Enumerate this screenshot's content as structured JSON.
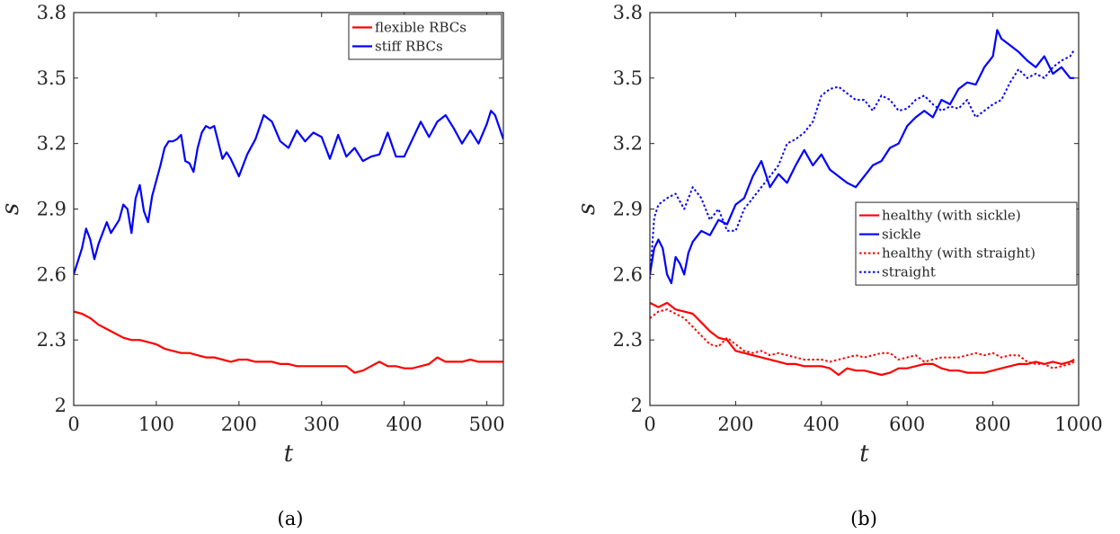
{
  "chart_data": [
    {
      "type": "line",
      "caption": "(a)",
      "xlabel": "t",
      "ylabel": "s",
      "xlim": [
        0,
        520
      ],
      "ylim": [
        2,
        3.8
      ],
      "xticks": [
        0,
        100,
        200,
        300,
        400,
        500
      ],
      "yticks": [
        2,
        2.3,
        2.6,
        2.9,
        3.2,
        3.5,
        3.8
      ],
      "ytick_labels": [
        "2",
        "2.3",
        "2.6",
        "2.9",
        "3.2",
        "3.5",
        "3.8"
      ],
      "legend_position": "top-right",
      "series": [
        {
          "name": "flexible RBCs",
          "color": "#ff0000",
          "style": "solid",
          "x": [
            0,
            10,
            20,
            30,
            40,
            50,
            60,
            70,
            80,
            90,
            100,
            110,
            120,
            130,
            140,
            150,
            160,
            170,
            180,
            190,
            200,
            210,
            220,
            230,
            240,
            250,
            260,
            270,
            280,
            290,
            300,
            310,
            320,
            330,
            340,
            350,
            360,
            370,
            380,
            390,
            400,
            410,
            420,
            430,
            440,
            450,
            460,
            470,
            480,
            490,
            500,
            510,
            520
          ],
          "values": [
            2.43,
            2.42,
            2.4,
            2.37,
            2.35,
            2.33,
            2.31,
            2.3,
            2.3,
            2.29,
            2.28,
            2.26,
            2.25,
            2.24,
            2.24,
            2.23,
            2.22,
            2.22,
            2.21,
            2.2,
            2.21,
            2.21,
            2.2,
            2.2,
            2.2,
            2.19,
            2.19,
            2.18,
            2.18,
            2.18,
            2.18,
            2.18,
            2.18,
            2.18,
            2.15,
            2.16,
            2.18,
            2.2,
            2.18,
            2.18,
            2.17,
            2.17,
            2.18,
            2.19,
            2.22,
            2.2,
            2.2,
            2.2,
            2.21,
            2.2,
            2.2,
            2.2,
            2.2
          ]
        },
        {
          "name": "stiff RBCs",
          "color": "#0000ff",
          "style": "solid",
          "x": [
            0,
            10,
            15,
            20,
            25,
            30,
            40,
            45,
            50,
            55,
            60,
            65,
            70,
            75,
            80,
            85,
            90,
            95,
            100,
            105,
            110,
            115,
            120,
            125,
            130,
            135,
            140,
            145,
            150,
            155,
            160,
            165,
            170,
            180,
            185,
            190,
            200,
            210,
            220,
            230,
            240,
            250,
            260,
            270,
            280,
            290,
            300,
            310,
            320,
            330,
            340,
            350,
            360,
            370,
            380,
            390,
            400,
            410,
            420,
            430,
            440,
            450,
            460,
            470,
            480,
            490,
            500,
            505,
            510,
            520
          ],
          "values": [
            2.6,
            2.72,
            2.81,
            2.76,
            2.67,
            2.74,
            2.84,
            2.79,
            2.82,
            2.85,
            2.92,
            2.9,
            2.79,
            2.95,
            3.01,
            2.89,
            2.84,
            2.96,
            3.03,
            3.1,
            3.18,
            3.21,
            3.21,
            3.22,
            3.24,
            3.12,
            3.11,
            3.07,
            3.18,
            3.25,
            3.28,
            3.27,
            3.28,
            3.13,
            3.16,
            3.13,
            3.05,
            3.15,
            3.22,
            3.33,
            3.3,
            3.21,
            3.18,
            3.26,
            3.21,
            3.25,
            3.23,
            3.13,
            3.24,
            3.14,
            3.18,
            3.12,
            3.14,
            3.15,
            3.25,
            3.14,
            3.14,
            3.22,
            3.3,
            3.23,
            3.3,
            3.33,
            3.27,
            3.2,
            3.26,
            3.2,
            3.29,
            3.35,
            3.33,
            3.22
          ]
        }
      ]
    },
    {
      "type": "line",
      "caption": "(b)",
      "xlabel": "t",
      "ylabel": "s",
      "xlim": [
        0,
        1000
      ],
      "ylim": [
        2,
        3.8
      ],
      "xticks": [
        0,
        200,
        400,
        600,
        800,
        1000
      ],
      "yticks": [
        2,
        2.3,
        2.6,
        2.9,
        3.2,
        3.5,
        3.8
      ],
      "ytick_labels": [
        "2",
        "2.3",
        "2.6",
        "2.9",
        "3.2",
        "3.5",
        "3.8"
      ],
      "legend_position": "lower-right",
      "series": [
        {
          "name": "healthy (with sickle)",
          "color": "#ff0000",
          "style": "solid",
          "x": [
            0,
            20,
            40,
            60,
            80,
            100,
            120,
            140,
            160,
            180,
            200,
            220,
            240,
            260,
            280,
            300,
            320,
            340,
            360,
            380,
            400,
            420,
            440,
            460,
            480,
            500,
            520,
            540,
            560,
            580,
            600,
            620,
            640,
            660,
            680,
            700,
            720,
            740,
            760,
            780,
            800,
            820,
            840,
            860,
            880,
            900,
            920,
            940,
            960,
            980,
            990
          ],
          "values": [
            2.47,
            2.45,
            2.47,
            2.44,
            2.43,
            2.42,
            2.38,
            2.34,
            2.31,
            2.3,
            2.25,
            2.24,
            2.23,
            2.22,
            2.21,
            2.2,
            2.19,
            2.19,
            2.18,
            2.18,
            2.18,
            2.17,
            2.14,
            2.17,
            2.16,
            2.16,
            2.15,
            2.14,
            2.15,
            2.17,
            2.17,
            2.18,
            2.19,
            2.19,
            2.17,
            2.16,
            2.16,
            2.15,
            2.15,
            2.15,
            2.16,
            2.17,
            2.18,
            2.19,
            2.19,
            2.2,
            2.19,
            2.2,
            2.19,
            2.2,
            2.21
          ]
        },
        {
          "name": "sickle",
          "color": "#0000ff",
          "style": "solid",
          "x": [
            0,
            10,
            20,
            30,
            40,
            50,
            60,
            70,
            80,
            90,
            100,
            120,
            140,
            160,
            180,
            200,
            220,
            240,
            260,
            280,
            300,
            320,
            340,
            360,
            380,
            400,
            420,
            440,
            460,
            480,
            500,
            520,
            540,
            560,
            580,
            600,
            620,
            640,
            660,
            680,
            700,
            720,
            740,
            760,
            780,
            800,
            810,
            820,
            840,
            860,
            880,
            900,
            920,
            940,
            960,
            980,
            990
          ],
          "values": [
            2.6,
            2.72,
            2.76,
            2.72,
            2.6,
            2.56,
            2.68,
            2.65,
            2.6,
            2.7,
            2.75,
            2.8,
            2.78,
            2.85,
            2.83,
            2.92,
            2.95,
            3.05,
            3.12,
            3.0,
            3.06,
            3.02,
            3.1,
            3.17,
            3.1,
            3.15,
            3.08,
            3.05,
            3.02,
            3.0,
            3.05,
            3.1,
            3.12,
            3.18,
            3.2,
            3.28,
            3.32,
            3.35,
            3.32,
            3.4,
            3.38,
            3.45,
            3.48,
            3.47,
            3.55,
            3.6,
            3.72,
            3.68,
            3.65,
            3.62,
            3.58,
            3.55,
            3.6,
            3.52,
            3.55,
            3.5,
            3.5
          ]
        },
        {
          "name": "healthy (with straight)",
          "color": "#ff0000",
          "style": "dotted",
          "x": [
            0,
            20,
            40,
            60,
            80,
            100,
            120,
            140,
            160,
            180,
            200,
            220,
            240,
            260,
            280,
            300,
            320,
            340,
            360,
            380,
            400,
            420,
            440,
            460,
            480,
            500,
            520,
            540,
            560,
            580,
            600,
            620,
            640,
            660,
            680,
            700,
            720,
            740,
            760,
            780,
            800,
            820,
            840,
            860,
            880,
            900,
            920,
            940,
            960,
            980,
            990
          ],
          "values": [
            2.4,
            2.43,
            2.44,
            2.42,
            2.4,
            2.36,
            2.32,
            2.28,
            2.27,
            2.31,
            2.28,
            2.25,
            2.24,
            2.25,
            2.23,
            2.24,
            2.23,
            2.22,
            2.21,
            2.21,
            2.21,
            2.2,
            2.21,
            2.22,
            2.23,
            2.22,
            2.23,
            2.24,
            2.24,
            2.21,
            2.22,
            2.23,
            2.2,
            2.21,
            2.22,
            2.22,
            2.22,
            2.23,
            2.24,
            2.23,
            2.24,
            2.22,
            2.23,
            2.23,
            2.2,
            2.19,
            2.19,
            2.17,
            2.18,
            2.19,
            2.2
          ]
        },
        {
          "name": "straight",
          "color": "#0000ff",
          "style": "dotted",
          "x": [
            0,
            10,
            20,
            40,
            60,
            80,
            100,
            120,
            140,
            160,
            180,
            200,
            220,
            240,
            260,
            280,
            300,
            320,
            340,
            360,
            380,
            400,
            420,
            440,
            460,
            480,
            500,
            520,
            540,
            560,
            580,
            600,
            620,
            640,
            660,
            680,
            700,
            720,
            740,
            760,
            780,
            800,
            820,
            840,
            860,
            880,
            900,
            920,
            940,
            960,
            980,
            990
          ],
          "values": [
            2.58,
            2.86,
            2.92,
            2.95,
            2.97,
            2.9,
            3.0,
            2.95,
            2.85,
            2.9,
            2.8,
            2.8,
            2.9,
            2.95,
            3.0,
            3.05,
            3.1,
            3.2,
            3.22,
            3.25,
            3.3,
            3.42,
            3.45,
            3.46,
            3.43,
            3.4,
            3.4,
            3.35,
            3.42,
            3.4,
            3.35,
            3.36,
            3.4,
            3.42,
            3.38,
            3.35,
            3.37,
            3.36,
            3.4,
            3.32,
            3.35,
            3.38,
            3.4,
            3.48,
            3.54,
            3.5,
            3.52,
            3.5,
            3.55,
            3.58,
            3.6,
            3.63
          ]
        }
      ]
    }
  ]
}
